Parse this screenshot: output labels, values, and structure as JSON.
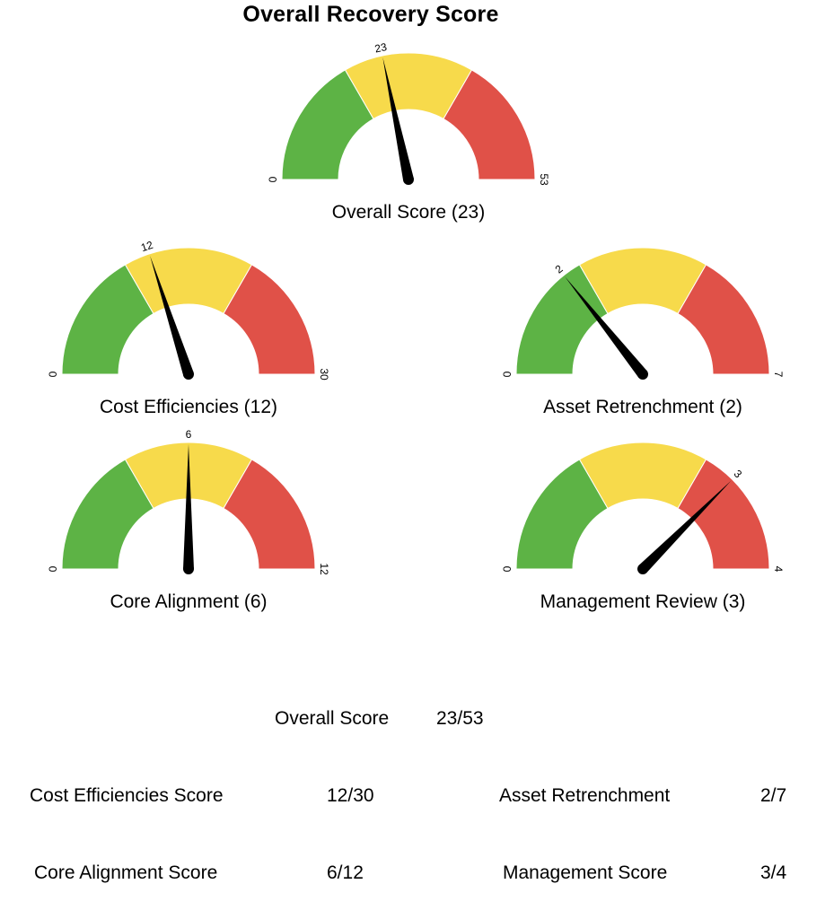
{
  "title": "Overall Recovery Score",
  "colors": {
    "green": "#5db345",
    "yellow": "#f7da4b",
    "red": "#e05148",
    "needle": "#000000"
  },
  "chart_data": [
    {
      "type": "gauge",
      "key": "overall",
      "label": "Overall Score (23)",
      "value": 23,
      "min": 0,
      "max": 53,
      "min_label": "0",
      "max_label": "53",
      "value_label": "23"
    },
    {
      "type": "gauge",
      "key": "cost",
      "label": "Cost Efficiencies (12)",
      "value": 12,
      "min": 0,
      "max": 30,
      "min_label": "0",
      "max_label": "30",
      "value_label": "12"
    },
    {
      "type": "gauge",
      "key": "asset",
      "label": "Asset Retrenchment (2)",
      "value": 2,
      "min": 0,
      "max": 7,
      "min_label": "0",
      "max_label": "7",
      "value_label": "2"
    },
    {
      "type": "gauge",
      "key": "core",
      "label": "Core Alignment (6)",
      "value": 6,
      "min": 0,
      "max": 12,
      "min_label": "0",
      "max_label": "12",
      "value_label": "6"
    },
    {
      "type": "gauge",
      "key": "management",
      "label": "Management Review (3)",
      "value": 3,
      "min": 0,
      "max": 4,
      "min_label": "0",
      "max_label": "4",
      "value_label": "3"
    }
  ],
  "summary": {
    "overall": {
      "label": "Overall Score",
      "value": "23/53"
    },
    "cost": {
      "label": "Cost Efficiencies Score",
      "value": "12/30"
    },
    "asset": {
      "label": "Asset Retrenchment",
      "value": "2/7"
    },
    "core": {
      "label": "Core Alignment Score",
      "value": "6/12"
    },
    "management": {
      "label": "Management Score",
      "value": "3/4"
    }
  }
}
